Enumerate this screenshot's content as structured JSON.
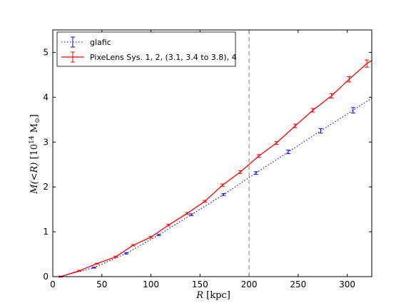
{
  "chart_data": {
    "type": "line",
    "title": "",
    "xlabel": "R [kpc]",
    "ylabel": "M(<R) [10^14 M_sun]",
    "xlabel_parts": {
      "var": "R",
      "unit": " [kpc]"
    },
    "ylabel_parts": {
      "var": "M(<R)",
      "unit_pre": " [10",
      "exp": "14",
      "unit_post": " M",
      "sub": "⊙",
      "close": "]"
    },
    "xlim": [
      0,
      325
    ],
    "ylim": [
      0,
      5.5
    ],
    "xticks": [
      0,
      50,
      100,
      150,
      200,
      250,
      300
    ],
    "yticks": [
      0,
      1,
      2,
      3,
      4,
      5
    ],
    "vline": {
      "x": 200,
      "style": "dashed",
      "color": "#808080"
    },
    "legend": {
      "placement": "top-left"
    },
    "series": [
      {
        "name": "glafic",
        "color": "#0000ff",
        "style": "dotted",
        "x": [
          8,
          42,
          75,
          108,
          141,
          174,
          207,
          240,
          273,
          306,
          325
        ],
        "y": [
          0.0,
          0.2,
          0.52,
          0.93,
          1.38,
          1.83,
          2.31,
          2.78,
          3.25,
          3.71,
          3.98
        ],
        "err": [
          0.01,
          0.01,
          0.015,
          0.015,
          0.02,
          0.02,
          0.03,
          0.04,
          0.05,
          0.06,
          0.0
        ]
      },
      {
        "name": "PixeLens Sys. 1, 2, (3.1, 3.4 to 3.8), 4",
        "color": "#ff0000",
        "style": "solid",
        "x": [
          8,
          27,
          45,
          64,
          82,
          100,
          118,
          137,
          155,
          173,
          191,
          210,
          228,
          247,
          265,
          284,
          302,
          320,
          325
        ],
        "y": [
          0.0,
          0.13,
          0.29,
          0.44,
          0.7,
          0.88,
          1.15,
          1.41,
          1.68,
          2.04,
          2.33,
          2.69,
          2.98,
          3.36,
          3.71,
          4.03,
          4.4,
          4.75,
          4.82
        ],
        "err": [
          0.01,
          0.01,
          0.01,
          0.015,
          0.015,
          0.02,
          0.02,
          0.02,
          0.02,
          0.025,
          0.03,
          0.03,
          0.03,
          0.04,
          0.04,
          0.05,
          0.06,
          0.08,
          0.0
        ]
      }
    ]
  }
}
